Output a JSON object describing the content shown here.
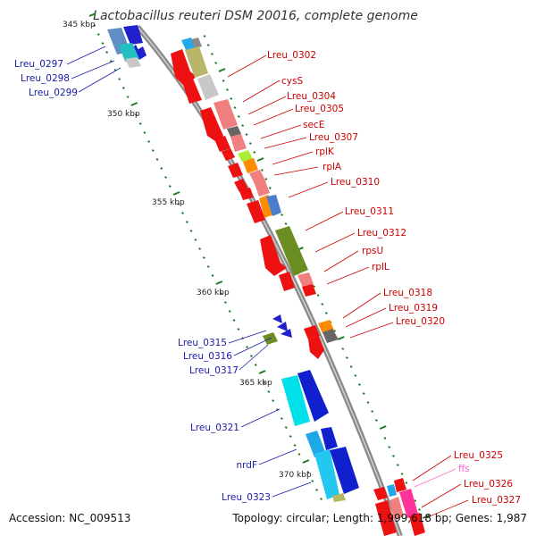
{
  "title": "Lactobacillus reuteri DSM 20016, complete genome",
  "footer": {
    "accession": "Accession: NC_009513",
    "topology": "Topology: circular; Length: 1,999,618 bp; Genes: 1,987"
  },
  "colors": {
    "backbone": "#8a8a8a",
    "tick": "#1f7a1f",
    "label_forward": "#cc0000",
    "label_reverse": "#1a1aaa",
    "label_rna": "#ff66cc"
  },
  "scale_labels": [
    "345 kbp",
    "350 kbp",
    "355 kbp",
    "360 kbp",
    "365 kbp",
    "370 kbp"
  ],
  "forward_labels": [
    "Lreu_0302",
    "cysS",
    "Lreu_0304",
    "Lreu_0305",
    "secE",
    "Lreu_0307",
    "rplK",
    "rplA",
    "Lreu_0310",
    "Lreu_0311",
    "Lreu_0312",
    "rpsU",
    "rplL",
    "Lreu_0318",
    "Lreu_0319",
    "Lreu_0320",
    "Lreu_0325",
    "ffs",
    "Lreu_0326",
    "Lreu_0327"
  ],
  "reverse_labels": [
    "Lreu_0297",
    "Lreu_0298",
    "Lreu_0299",
    "Lreu_0315",
    "Lreu_0316",
    "Lreu_0317",
    "Lreu_0321",
    "nrdF",
    "Lreu_0323"
  ]
}
